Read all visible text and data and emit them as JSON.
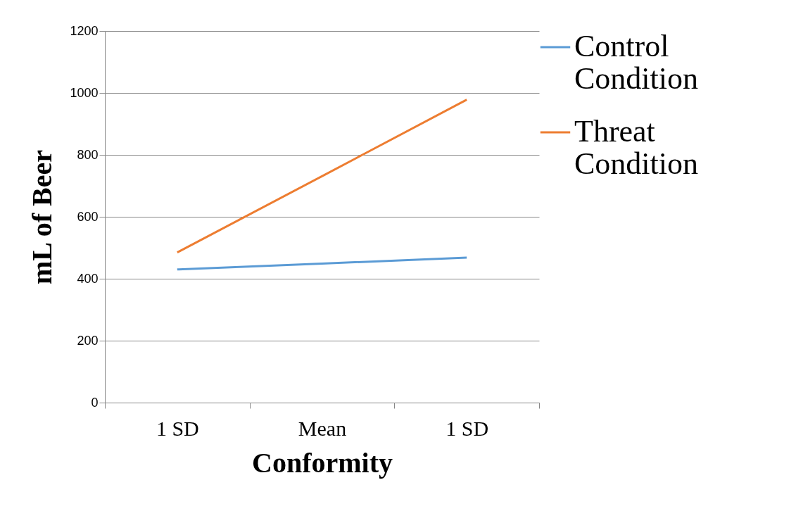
{
  "chart_data": {
    "type": "line",
    "xlabel": "Conformity",
    "ylabel": "mL of Beer",
    "categories": [
      "1 SD",
      "Mean",
      "1 SD"
    ],
    "series": [
      {
        "name": "Control Condition",
        "color": "#5b9bd5",
        "values": [
          430,
          449,
          468
        ]
      },
      {
        "name": "Threat Condition",
        "color": "#ed7d31",
        "values": [
          485,
          731,
          978
        ]
      }
    ],
    "ylim": [
      0,
      1200
    ],
    "yticks": [
      0,
      200,
      400,
      600,
      800,
      1000,
      1200
    ],
    "grid": "y",
    "legend": "right",
    "marker": "none"
  }
}
